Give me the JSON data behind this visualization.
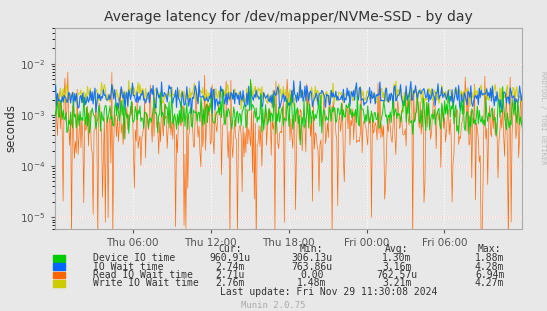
{
  "title": "Average latency for /dev/mapper/NVMe-SSD - by day",
  "ylabel": "seconds",
  "background_color": "#e8e8e8",
  "plot_bg_color": "#e8e8e8",
  "grid_color": "#ffffff",
  "title_color": "#333333",
  "watermark": "RRDTOOL / TOBI OETIKER",
  "munin_text": "Munin 2.0.75",
  "last_update": "Last update: Fri Nov 29 11:30:08 2024",
  "x_ticks_labels": [
    "Thu 06:00",
    "Thu 12:00",
    "Thu 18:00",
    "Fri 00:00",
    "Fri 06:00"
  ],
  "x_tick_positions": [
    0.1667,
    0.3333,
    0.5,
    0.6667,
    0.8333
  ],
  "ylim_min": 6e-06,
  "ylim_max": 0.05,
  "legend": [
    {
      "label": "Device IO time",
      "color": "#00cc00",
      "cur": "960.91u",
      "min": "306.13u",
      "avg": "1.30m",
      "max": "1.88m"
    },
    {
      "label": "IO Wait time",
      "color": "#0066ff",
      "cur": "2.74m",
      "min": "763.86u",
      "avg": "3.16m",
      "max": "4.28m"
    },
    {
      "label": "Read IO Wait time",
      "color": "#ff6600",
      "cur": "2.71u",
      "min": "0.00",
      "avg": "762.57u",
      "max": "6.94m"
    },
    {
      "label": "Write IO Wait time",
      "color": "#cccc00",
      "cur": "2.76m",
      "min": "1.48m",
      "avg": "3.21m",
      "max": "4.27m"
    }
  ],
  "n_points": 500,
  "seed": 42,
  "green_base": -3.0,
  "green_noise": 0.18,
  "blue_base": -2.65,
  "blue_noise": 0.12,
  "orange_base": -3.2,
  "orange_spike_prob": 0.22,
  "orange_spike_low": -5.5,
  "orange_spike_high": -2.2,
  "yellow_base": -2.6,
  "yellow_noise": 0.1
}
